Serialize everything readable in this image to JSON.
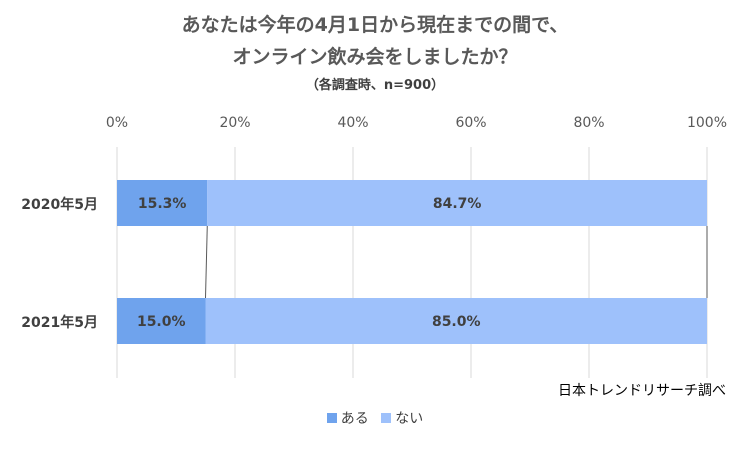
{
  "title_line1": "あなたは今年の4月1日から現在までの間で、",
  "title_line2": "オンライン飲み会をしましたか？",
  "subtitle": "（各調査時、n=900）",
  "source": "日本トレンドリサーチ調べ",
  "colors": {
    "aru": "#6fa3ed",
    "nai": "#9ec1fb",
    "grid": "#d9d9d9",
    "connector": "#595959"
  },
  "chart_data": {
    "type": "bar",
    "orientation": "horizontal",
    "stacked": "percent",
    "title": "あなたは今年の4月1日から現在までの間で、オンライン飲み会をしましたか？",
    "subtitle": "（各調査時、n=900）",
    "categories": [
      "2020年5月",
      "2021年5月"
    ],
    "series": [
      {
        "name": "ある",
        "values": [
          15.3,
          15.0
        ],
        "labels": [
          "15.3%",
          "15.0%"
        ]
      },
      {
        "name": "ない",
        "values": [
          84.7,
          85.0
        ],
        "labels": [
          "84.7%",
          "85.0%"
        ]
      }
    ],
    "xlim": [
      0,
      100
    ],
    "ticks": [
      0,
      20,
      40,
      60,
      80,
      100
    ],
    "tick_labels": [
      "0%",
      "20%",
      "40%",
      "60%",
      "80%",
      "100%"
    ],
    "grid": true,
    "series_lines": true,
    "legend_position": "bottom"
  }
}
